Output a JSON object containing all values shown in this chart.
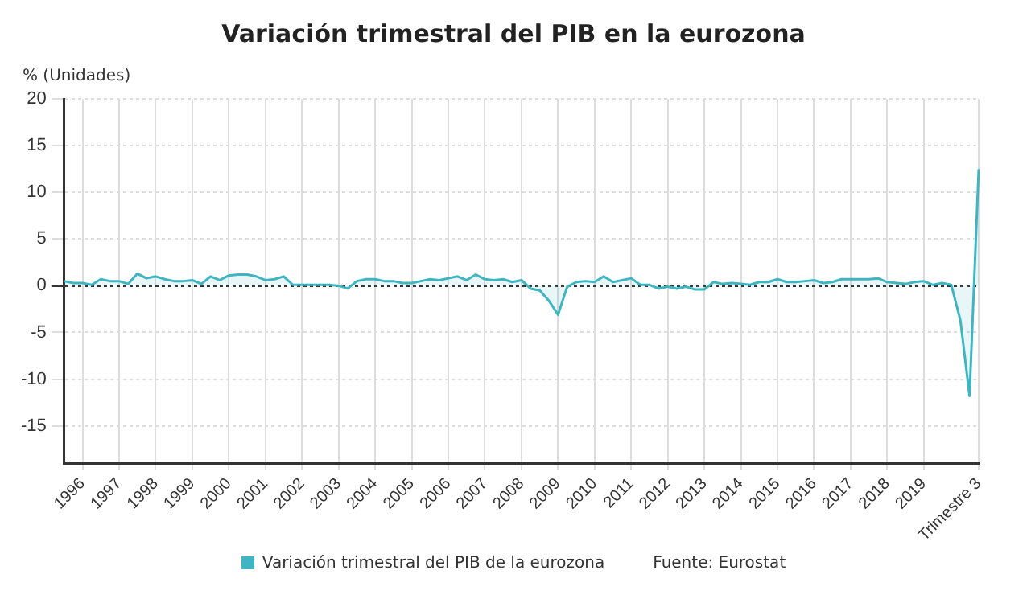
{
  "chart_data": {
    "type": "area",
    "title": "Variación trimestral del PIB en la eurozona",
    "ylabel": "% (Unidades)",
    "categories": [
      null,
      null,
      "1996",
      null,
      null,
      null,
      "1997",
      null,
      null,
      null,
      "1998",
      null,
      null,
      null,
      "1999",
      null,
      null,
      null,
      "2000",
      null,
      null,
      null,
      "2001",
      null,
      null,
      null,
      "2002",
      null,
      null,
      null,
      "2003",
      null,
      null,
      null,
      "2004",
      null,
      null,
      null,
      "2005",
      null,
      null,
      null,
      "2006",
      null,
      null,
      null,
      "2007",
      null,
      null,
      null,
      "2008",
      null,
      null,
      null,
      "2009",
      null,
      null,
      null,
      "2010",
      null,
      null,
      null,
      "2011",
      null,
      null,
      null,
      "2012",
      null,
      null,
      null,
      "2013",
      null,
      null,
      null,
      "2014",
      null,
      null,
      null,
      "2015",
      null,
      null,
      null,
      "2016",
      null,
      null,
      null,
      "2017",
      null,
      null,
      null,
      "2018",
      null,
      null,
      null,
      "2019",
      null,
      null,
      null,
      null,
      null,
      "Trimestre 3"
    ],
    "series": [
      {
        "name": "Variación trimestral del PIB de la eurozona",
        "color": "#3fb5c2",
        "values": [
          0.5,
          0.3,
          0.3,
          0.1,
          0.7,
          0.5,
          0.5,
          0.2,
          1.3,
          0.8,
          1.0,
          0.7,
          0.5,
          0.5,
          0.6,
          0.2,
          1.0,
          0.6,
          1.1,
          1.2,
          1.2,
          1.0,
          0.6,
          0.7,
          1.0,
          0.1,
          0.1,
          0.1,
          0.1,
          0.1,
          0.0,
          -0.3,
          0.5,
          0.7,
          0.7,
          0.5,
          0.5,
          0.3,
          0.3,
          0.5,
          0.7,
          0.6,
          0.8,
          1.0,
          0.6,
          1.2,
          0.7,
          0.6,
          0.7,
          0.4,
          0.6,
          -0.3,
          -0.5,
          -1.6,
          -3.1,
          -0.1,
          0.4,
          0.5,
          0.4,
          1.0,
          0.4,
          0.6,
          0.8,
          0.1,
          0.1,
          -0.3,
          -0.1,
          -0.3,
          -0.1,
          -0.4,
          -0.4,
          0.4,
          0.2,
          0.3,
          0.2,
          0.1,
          0.4,
          0.4,
          0.7,
          0.4,
          0.4,
          0.5,
          0.6,
          0.3,
          0.4,
          0.7,
          0.7,
          0.7,
          0.7,
          0.8,
          0.4,
          0.3,
          0.2,
          0.4,
          0.5,
          0.1,
          0.3,
          0.1,
          -3.7,
          -11.8,
          12.5
        ]
      }
    ],
    "ylim": [
      -19,
      20
    ],
    "yticks": [
      -15,
      -10,
      -5,
      0,
      5,
      10,
      15,
      20
    ],
    "grid": true,
    "legend": "bottom",
    "annotations": [
      "Fuente: Eurostat"
    ]
  }
}
